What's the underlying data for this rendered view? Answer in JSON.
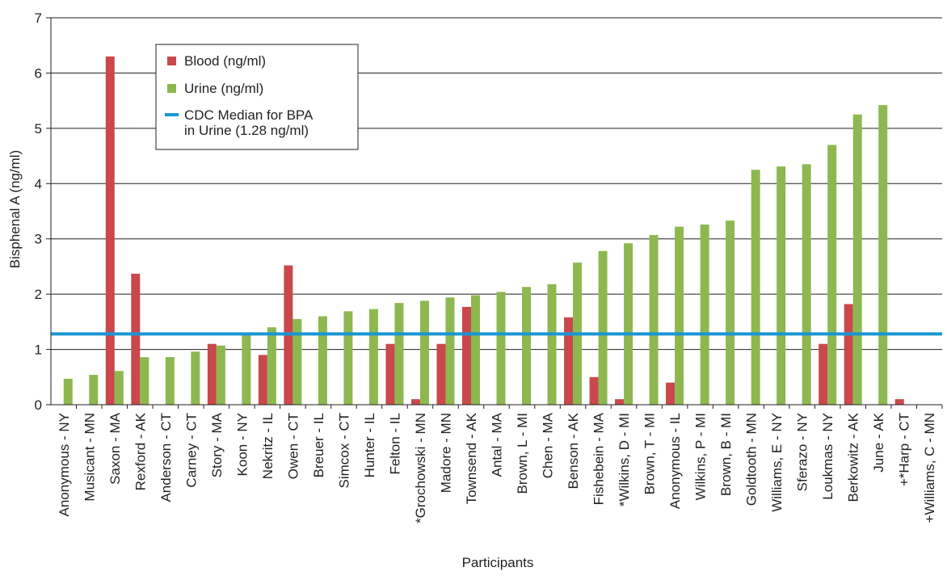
{
  "chart_data": {
    "type": "bar",
    "title": "",
    "xlabel": "Participants",
    "ylabel": "Bisphenal A (ng/ml)",
    "ylim": [
      0,
      7
    ],
    "yticks": [
      "0",
      "1",
      "2",
      "3",
      "4",
      "5",
      "6",
      "7"
    ],
    "grid": true,
    "legend_position": "top-left",
    "categories": [
      "Anonymous - NY",
      "Musicant - MN",
      "Saxon - MA",
      "Rexford - AK",
      "Anderson - CT",
      "Carney - CT",
      "Story - MA",
      "Koon - NY",
      "Nekritz - IL",
      "Owen - CT",
      "Breuer - IL",
      "Simcox - CT",
      "Hunter - IL",
      "Felton - IL",
      "*Grochowski - MN",
      "Madore - MN",
      "Townsend - AK",
      "Antal - MA",
      "Brown, L - MI",
      "Chen - MA",
      "Benson - AK",
      "Fishebein - MA",
      "*Wilkins, D - MI",
      "Brown, T - MI",
      "Anonymous - IL",
      "Wilkins, P - MI",
      "Brown, B - MI",
      "Goldtooth - MN",
      "Williams, E - NY",
      "Sferazo - NY",
      "Loukmas - NY",
      "Berkowitz - AK",
      "June - AK",
      "+*Harp - CT",
      "+Williams, C - MN"
    ],
    "series": [
      {
        "name": "Blood (ng/ml)",
        "color": "#c9484b",
        "values": [
          null,
          null,
          6.3,
          2.37,
          null,
          null,
          1.1,
          null,
          0.9,
          2.52,
          null,
          null,
          null,
          1.1,
          0.1,
          1.1,
          1.77,
          null,
          null,
          null,
          1.58,
          0.5,
          0.1,
          null,
          0.4,
          null,
          null,
          null,
          null,
          null,
          1.1,
          1.82,
          null,
          0.1,
          null
        ]
      },
      {
        "name": "Urine (ng/ml)",
        "color": "#8db84f",
        "values": [
          0.47,
          0.54,
          0.61,
          0.86,
          0.86,
          0.96,
          1.07,
          1.27,
          1.4,
          1.55,
          1.6,
          1.69,
          1.73,
          1.84,
          1.88,
          1.94,
          1.98,
          2.04,
          2.13,
          2.18,
          2.57,
          2.78,
          2.92,
          3.07,
          3.22,
          3.26,
          3.33,
          4.25,
          4.31,
          4.35,
          4.7,
          5.25,
          5.42,
          null,
          null
        ]
      }
    ],
    "reference_line": {
      "name": "CDC Median for BPA in Urine (1.28 ng/ml)",
      "label_lines": [
        "CDC Median for BPA",
        "in Urine (1.28 ng/ml)"
      ],
      "value": 1.28,
      "color": "#1a96d4"
    }
  }
}
